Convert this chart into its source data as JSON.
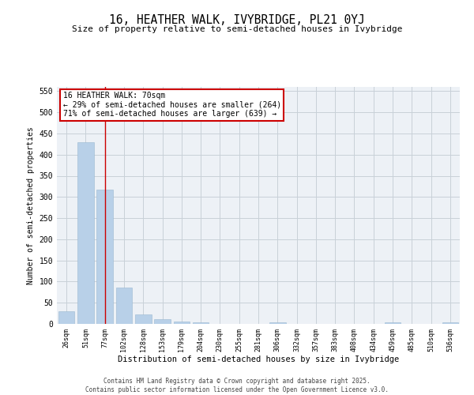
{
  "title_line1": "16, HEATHER WALK, IVYBRIDGE, PL21 0YJ",
  "title_line2": "Size of property relative to semi-detached houses in Ivybridge",
  "xlabel": "Distribution of semi-detached houses by size in Ivybridge",
  "ylabel": "Number of semi-detached properties",
  "categories": [
    "26sqm",
    "51sqm",
    "77sqm",
    "102sqm",
    "128sqm",
    "153sqm",
    "179sqm",
    "204sqm",
    "230sqm",
    "255sqm",
    "281sqm",
    "306sqm",
    "332sqm",
    "357sqm",
    "383sqm",
    "408sqm",
    "434sqm",
    "459sqm",
    "485sqm",
    "510sqm",
    "536sqm"
  ],
  "values": [
    30,
    430,
    318,
    86,
    23,
    11,
    5,
    3,
    0,
    0,
    0,
    3,
    0,
    0,
    0,
    0,
    0,
    3,
    0,
    0,
    3
  ],
  "bar_color": "#b8d0e8",
  "bar_edge_color": "#9ab8d0",
  "red_line_x": 2,
  "annotation_title": "16 HEATHER WALK: 70sqm",
  "annotation_line2": "← 29% of semi-detached houses are smaller (264)",
  "annotation_line3": "71% of semi-detached houses are larger (639) →",
  "annotation_box_color": "#cc0000",
  "ylim": [
    0,
    560
  ],
  "yticks": [
    0,
    50,
    100,
    150,
    200,
    250,
    300,
    350,
    400,
    450,
    500,
    550
  ],
  "grid_color": "#c8d0d8",
  "background_color": "#edf1f6",
  "footer_line1": "Contains HM Land Registry data © Crown copyright and database right 2025.",
  "footer_line2": "Contains public sector information licensed under the Open Government Licence v3.0."
}
